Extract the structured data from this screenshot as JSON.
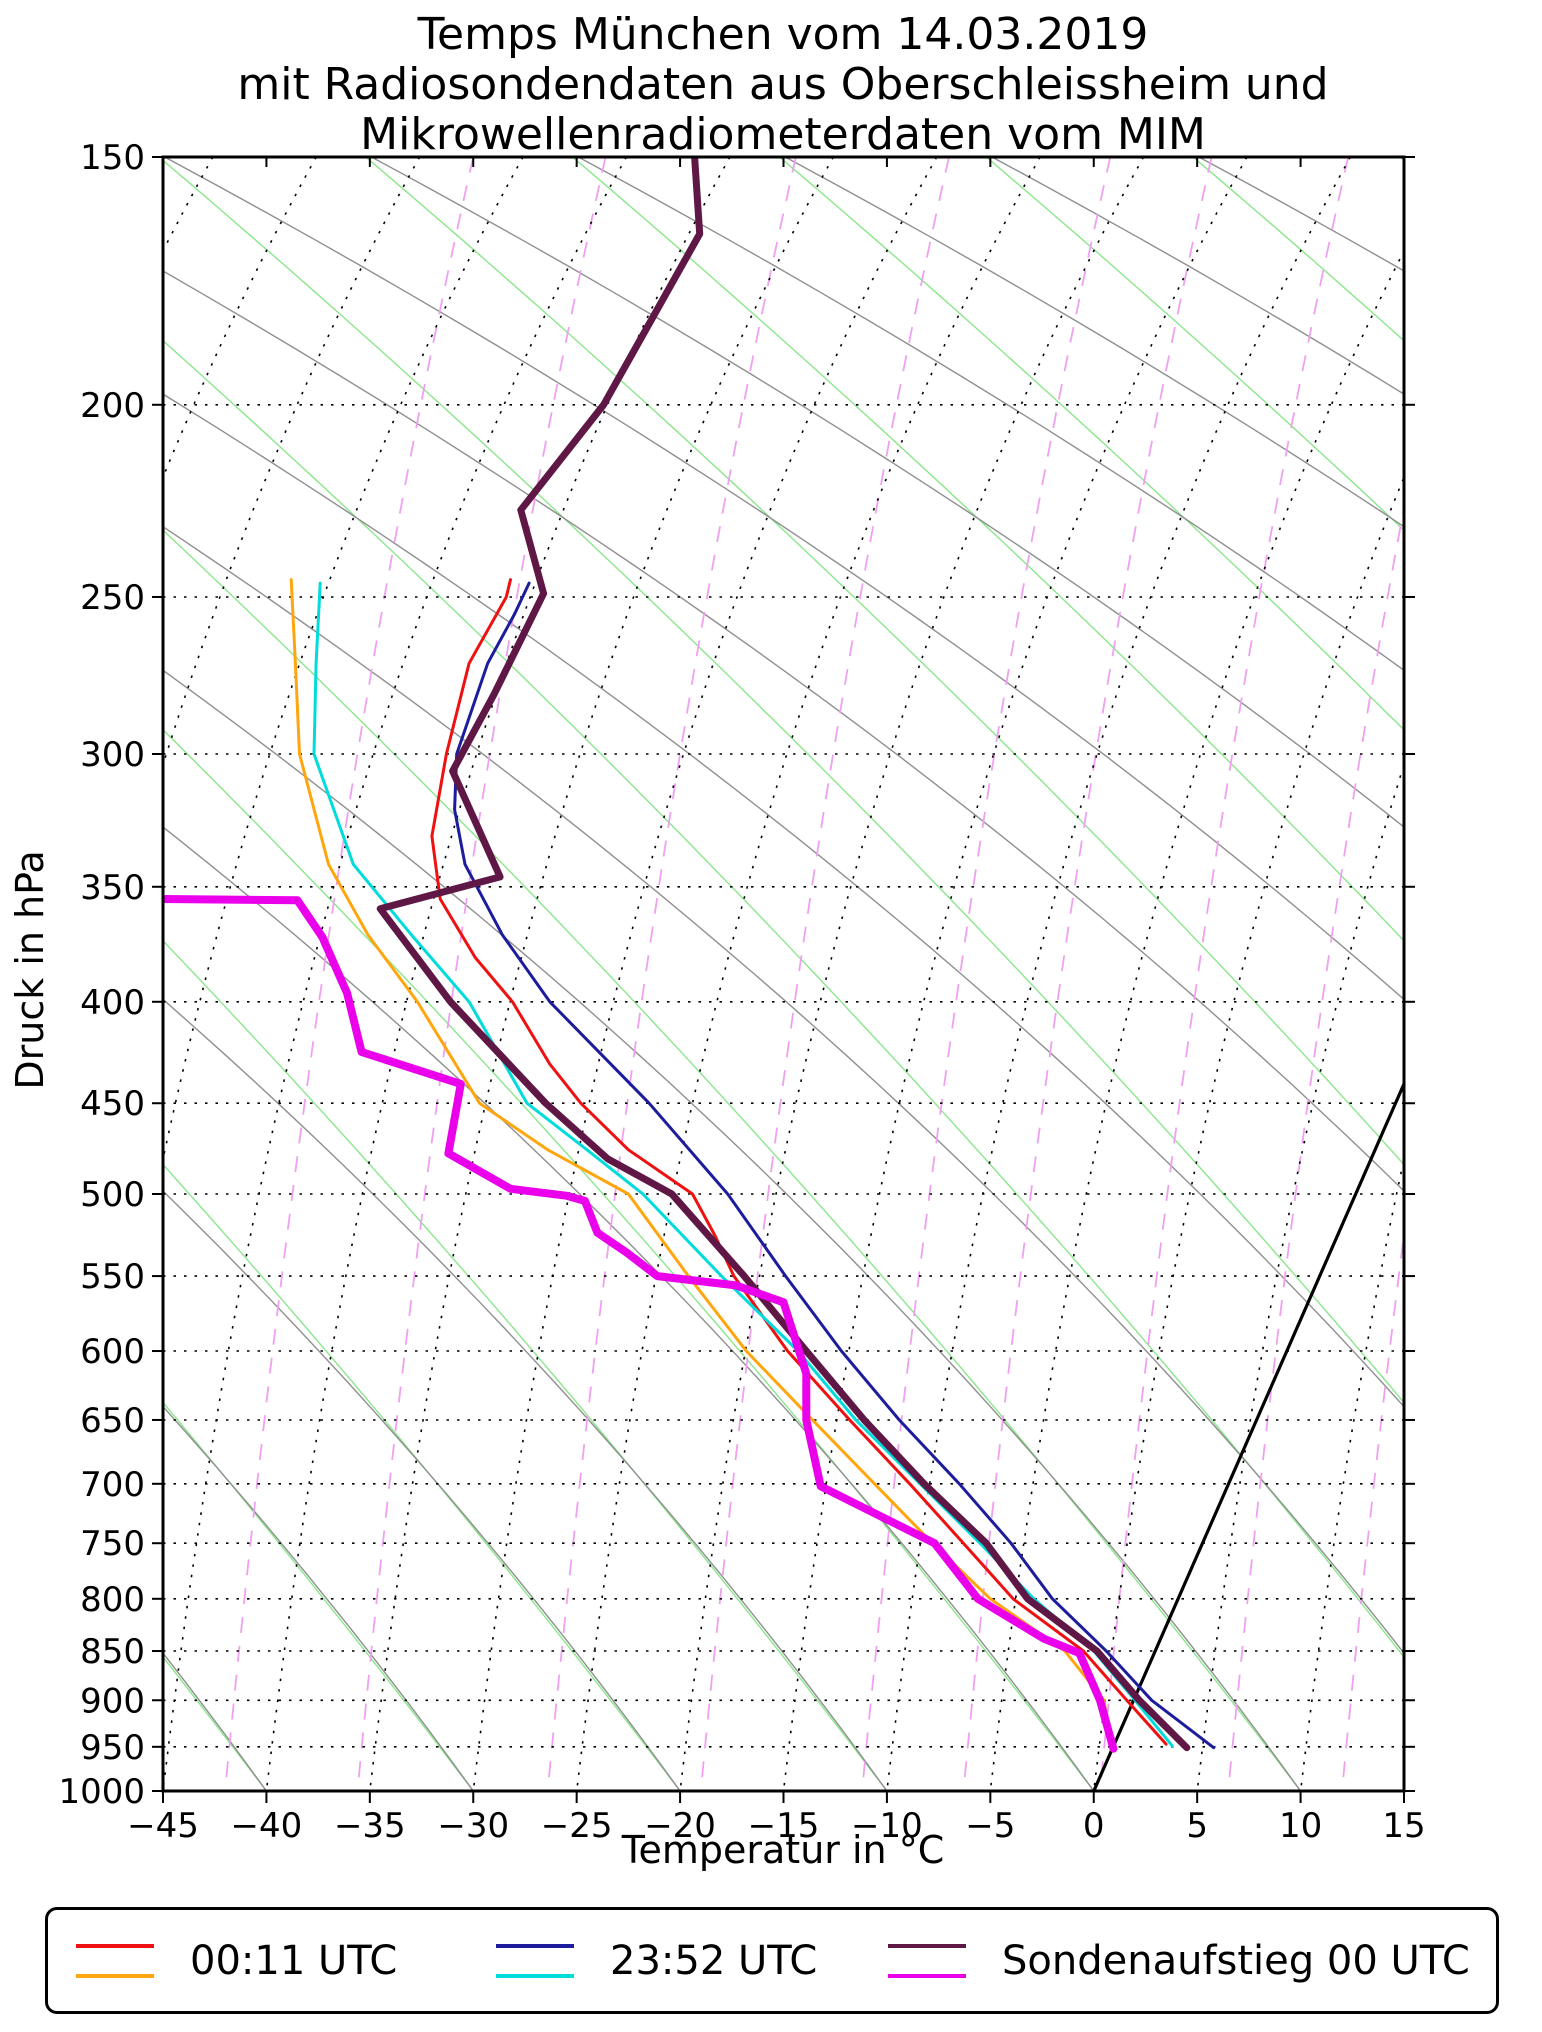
{
  "title": {
    "line1": "Temps München vom 14.03.2019",
    "line2": "mit Radiosondendaten aus Oberschleissheim und",
    "line3": "Mikrowellenradiometerdaten vom MIM"
  },
  "axes": {
    "x": {
      "label": "Temperatur in °C",
      "min": -45,
      "max": 15,
      "tick_step": 5,
      "tick_values": [
        -45,
        -40,
        -35,
        -30,
        -25,
        -20,
        -15,
        -10,
        -5,
        0,
        5,
        10,
        15
      ],
      "tick_labels": [
        "−45",
        "−40",
        "−35",
        "−30",
        "−25",
        "−20",
        "−15",
        "−10",
        "−5",
        "0",
        "5",
        "10",
        "15"
      ]
    },
    "y": {
      "label": "Druck in hPa",
      "scale": "log",
      "min": 150,
      "max": 1000,
      "tick_values": [
        150,
        200,
        250,
        300,
        350,
        400,
        450,
        500,
        550,
        600,
        650,
        700,
        750,
        800,
        850,
        900,
        950,
        1000
      ]
    }
  },
  "legend": {
    "entries": [
      {
        "label": "00:11 UTC",
        "colors": [
          "#ee1111",
          "#ffa60f"
        ]
      },
      {
        "label": "23:52 UTC",
        "colors": [
          "#1c1c9c",
          "#00dcdc"
        ]
      },
      {
        "label": "Sondenaufstieg 00 UTC",
        "colors": [
          "#5f1745",
          "#ea00ea"
        ]
      }
    ]
  },
  "chart_data": {
    "type": "line",
    "title": "Temps München vom 14.03.2019",
    "xlabel": "Temperatur in °C",
    "ylabel": "Druck in hPa",
    "xlim": [
      -45,
      15
    ],
    "ylim_hPa": [
      150,
      1000
    ],
    "projection": {
      "kind": "skew-T / log-p",
      "skew_factor_C_per_ln_p": 18.27,
      "note": "Point x-values are positions on the skewed temperature axis in °C as labeled at the 1000 hPa baseline; approximate true temperature T(p) = x − 18.27·ln(1000/p). Pressure in hPa on a log axis."
    },
    "series": [
      {
        "name": "00:11 UTC Temperatur",
        "color": "#ee1111",
        "width": 3,
        "points": [
          [
            245,
            -28.2
          ],
          [
            250,
            -28.4
          ],
          [
            270,
            -30.2
          ],
          [
            300,
            -31.3
          ],
          [
            330,
            -32.0
          ],
          [
            355,
            -31.6
          ],
          [
            380,
            -29.9
          ],
          [
            400,
            -28.1
          ],
          [
            430,
            -26.3
          ],
          [
            450,
            -24.8
          ],
          [
            475,
            -22.5
          ],
          [
            500,
            -19.4
          ],
          [
            525,
            -18.3
          ],
          [
            550,
            -17.4
          ],
          [
            600,
            -14.8
          ],
          [
            650,
            -11.8
          ],
          [
            700,
            -8.9
          ],
          [
            750,
            -6.3
          ],
          [
            800,
            -3.9
          ],
          [
            850,
            -0.5
          ],
          [
            900,
            1.6
          ],
          [
            947,
            3.5
          ]
        ]
      },
      {
        "name": "00:11 UTC Taupunkt",
        "color": "#ffa60f",
        "width": 3,
        "points": [
          [
            245,
            -38.8
          ],
          [
            270,
            -38.6
          ],
          [
            300,
            -38.4
          ],
          [
            341,
            -37.0
          ],
          [
            370,
            -35.1
          ],
          [
            400,
            -32.7
          ],
          [
            450,
            -29.7
          ],
          [
            475,
            -26.4
          ],
          [
            500,
            -22.5
          ],
          [
            550,
            -19.6
          ],
          [
            600,
            -16.8
          ],
          [
            650,
            -13.6
          ],
          [
            700,
            -10.6
          ],
          [
            750,
            -7.8
          ],
          [
            800,
            -5.0
          ],
          [
            850,
            -1.4
          ],
          [
            900,
            0.5
          ],
          [
            948,
            0.8
          ]
        ]
      },
      {
        "name": "23:52 UTC Temperatur",
        "color": "#1c1c9c",
        "width": 3,
        "points": [
          [
            246,
            -27.3
          ],
          [
            255,
            -28.0
          ],
          [
            270,
            -29.3
          ],
          [
            300,
            -30.8
          ],
          [
            320,
            -30.9
          ],
          [
            341,
            -30.4
          ],
          [
            370,
            -28.6
          ],
          [
            400,
            -26.3
          ],
          [
            450,
            -21.5
          ],
          [
            500,
            -17.7
          ],
          [
            550,
            -14.9
          ],
          [
            600,
            -12.2
          ],
          [
            650,
            -9.4
          ],
          [
            700,
            -6.5
          ],
          [
            750,
            -4.0
          ],
          [
            800,
            -2.0
          ],
          [
            850,
            0.6
          ],
          [
            900,
            2.8
          ],
          [
            925,
            4.3
          ],
          [
            951,
            5.8
          ]
        ]
      },
      {
        "name": "23:52 UTC Taupunkt",
        "color": "#00dcdc",
        "width": 3,
        "points": [
          [
            246,
            -37.4
          ],
          [
            270,
            -37.6
          ],
          [
            300,
            -37.7
          ],
          [
            341,
            -35.8
          ],
          [
            370,
            -33.0
          ],
          [
            400,
            -30.2
          ],
          [
            450,
            -27.4
          ],
          [
            475,
            -24.5
          ],
          [
            500,
            -21.8
          ],
          [
            550,
            -18.0
          ],
          [
            600,
            -14.3
          ],
          [
            650,
            -11.5
          ],
          [
            700,
            -8.4
          ],
          [
            750,
            -5.5
          ],
          [
            800,
            -2.9
          ],
          [
            850,
            0.0
          ],
          [
            900,
            2.0
          ],
          [
            949,
            3.8
          ]
        ]
      },
      {
        "name": "Sondenaufstieg 00 UTC Temperatur",
        "color": "#5f1745",
        "width": 7,
        "points": [
          [
            150,
            -19.3
          ],
          [
            164,
            -19.05
          ],
          [
            200,
            -23.7
          ],
          [
            226,
            -27.7
          ],
          [
            249,
            -26.6
          ],
          [
            280,
            -29.0
          ],
          [
            306,
            -31.0
          ],
          [
            346,
            -28.7
          ],
          [
            359,
            -34.5
          ],
          [
            400,
            -31.1
          ],
          [
            450,
            -26.5
          ],
          [
            480,
            -23.5
          ],
          [
            500,
            -20.4
          ],
          [
            550,
            -16.9
          ],
          [
            600,
            -13.9
          ],
          [
            650,
            -11.1
          ],
          [
            700,
            -8.2
          ],
          [
            750,
            -5.2
          ],
          [
            800,
            -3.2
          ],
          [
            850,
            0.15
          ],
          [
            900,
            2.2
          ],
          [
            951,
            4.5
          ]
        ]
      },
      {
        "name": "Sondenaufstieg 00 UTC Taupunkt",
        "color": "#ea00ea",
        "width": 8,
        "points": [
          [
            355,
            -45.2
          ],
          [
            355.5,
            -38.5
          ],
          [
            371,
            -37.3
          ],
          [
            396,
            -36.1
          ],
          [
            424,
            -35.4
          ],
          [
            440,
            -30.6
          ],
          [
            477,
            -31.2
          ],
          [
            497,
            -28.2
          ],
          [
            501,
            -25.5
          ],
          [
            504,
            -24.6
          ],
          [
            523,
            -24.0
          ],
          [
            535,
            -22.6
          ],
          [
            550,
            -21.1
          ],
          [
            556,
            -17.3
          ],
          [
            567,
            -15.0
          ],
          [
            616,
            -13.9
          ],
          [
            650,
            -13.9
          ],
          [
            702,
            -13.2
          ],
          [
            750,
            -7.7
          ],
          [
            800,
            -5.6
          ],
          [
            838,
            -2.4
          ],
          [
            852,
            -0.7
          ],
          [
            900,
            0.3
          ],
          [
            952,
            0.95
          ]
        ]
      }
    ],
    "reference_line": {
      "name": "0 °C Isotherme",
      "color": "#000000",
      "width": 3.2,
      "points": [
        [
          440,
          15
        ],
        [
          1000,
          0
        ]
      ]
    },
    "background": {
      "grid_on": true,
      "pressure_lines": {
        "values": [
          200,
          250,
          300,
          350,
          400,
          450,
          500,
          550,
          600,
          650,
          700,
          750,
          800,
          850,
          900,
          950
        ],
        "style": "dotted",
        "color": "#000000",
        "width": 1.6
      },
      "isotherms": {
        "x1000_start": -70,
        "x1000_end": 15,
        "step": 5,
        "curve": {
          "A": 6.2,
          "a": 0.806
        },
        "style": "dotted",
        "color": "#000000",
        "width": 1.6
      },
      "mixing_ratio_lines": {
        "x1000_values": [
          -42,
          -35.6,
          -26.4,
          -19,
          -11.2,
          -6.3,
          0.3,
          6.5,
          12
        ],
        "curve": {
          "A": 8.9,
          "a": 0.45
        },
        "style": "dashed",
        "color": "#f0a0f0",
        "width": 1.8
      },
      "dry_adiabats": {
        "x1000_start": -40,
        "x1000_end": 150,
        "step": 10,
        "curve": {
          "A": -136,
          "a": 0.232
        },
        "style": "solid",
        "color": "#8ce68c",
        "width": 1.4
      },
      "moist_adiabats": {
        "x1000_start": -40,
        "x1000_end": 120,
        "step": 10,
        "curve": {
          "A": -60,
          "a": 0.5
        },
        "style": "solid",
        "color": "#8f8f8f",
        "width": 1.4
      }
    },
    "legend_position": "bottom"
  }
}
